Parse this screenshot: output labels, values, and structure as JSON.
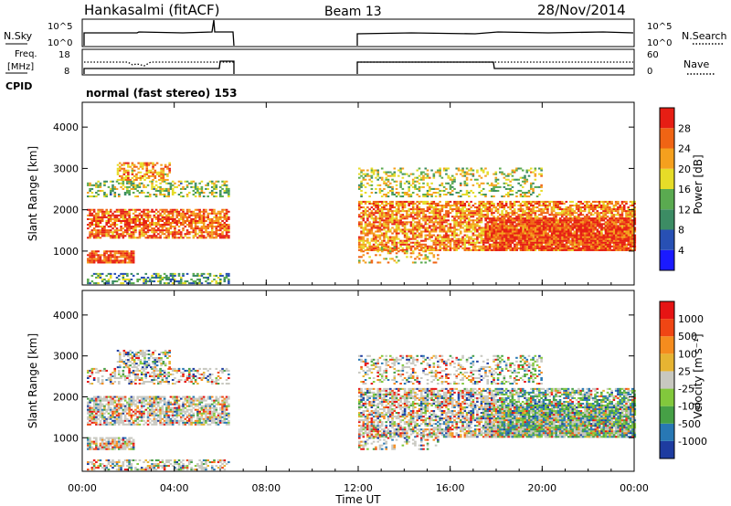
{
  "header": {
    "station": "Hankasalmi (fitACF)",
    "beam": "Beam 13",
    "date": "28/Nov/2014"
  },
  "strip_labels": {
    "nsky": "N.Sky",
    "nsky_ticks": [
      "10^5",
      "10^0"
    ],
    "nsearch": "N.Search",
    "nsearch_ticks": [
      "10^5",
      "10^0"
    ],
    "freq_line1": "Freq.",
    "freq_line2": "[MHz]",
    "freq_ticks": [
      "18",
      "8"
    ],
    "nave": "Nave",
    "nave_ticks": [
      "60",
      "0"
    ],
    "cpid": "CPID",
    "cpid_text": "normal (fast stereo) 153"
  },
  "colors": {
    "power": [
      "#1a1aff",
      "#2850b4",
      "#3c8c64",
      "#5aaa50",
      "#e6dc28",
      "#f5a01e",
      "#f06414",
      "#e61e14"
    ],
    "velocity": [
      "#1e3ca0",
      "#2878b4",
      "#46a046",
      "#82c83c",
      "#c8c8c0",
      "#e6b432",
      "#f58c1e",
      "#f04614",
      "#e61414"
    ]
  },
  "chart_data": [
    {
      "type": "heatmap",
      "name": "power",
      "ylabel": "Slant Range [km]",
      "xlabel": "Time UT",
      "x_ticks": [
        "00:00",
        "04:00",
        "08:00",
        "12:00",
        "16:00",
        "20:00",
        "00:00"
      ],
      "x_range_hours": [
        0,
        24
      ],
      "y_ticks": [
        "1000",
        "2000",
        "3000",
        "4000"
      ],
      "ylim": [
        180,
        4600
      ],
      "colorbar_label": "Power [dB]",
      "colorbar_ticks": [
        "28",
        "24",
        "20",
        "16",
        "12",
        "8",
        "4"
      ],
      "data_gap_hours": [
        6.5,
        12.0
      ]
    },
    {
      "type": "heatmap",
      "name": "velocity",
      "ylabel": "Slant Range [km]",
      "xlabel": "Time UT",
      "x_ticks": [
        "00:00",
        "04:00",
        "08:00",
        "12:00",
        "16:00",
        "20:00",
        "00:00"
      ],
      "x_range_hours": [
        0,
        24
      ],
      "y_ticks": [
        "1000",
        "2000",
        "3000",
        "4000"
      ],
      "ylim": [
        180,
        4600
      ],
      "colorbar_label": "Velocity [m s⁻¹]",
      "colorbar_ticks": [
        "1000",
        "500",
        "100",
        "25",
        "-25",
        "-100",
        "-500",
        "-1000"
      ],
      "data_gap_hours": [
        6.5,
        12.0
      ]
    }
  ]
}
